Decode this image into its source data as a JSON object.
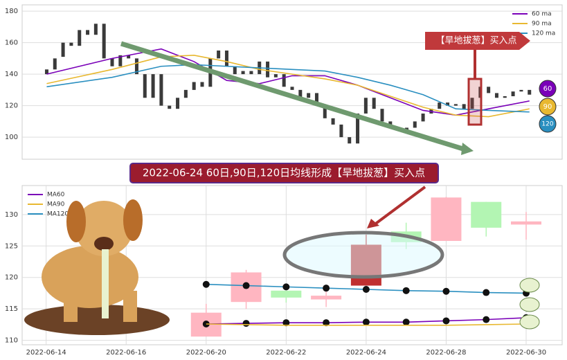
{
  "chart_data": [
    {
      "type": "candlestick",
      "x": [
        0,
        1,
        2,
        3,
        4,
        5,
        6,
        7,
        8,
        9,
        10,
        11,
        12,
        13,
        14,
        15,
        16,
        17,
        18,
        19,
        20,
        21,
        22,
        23,
        24,
        25,
        26,
        27,
        28,
        29,
        30,
        31,
        32,
        33,
        34,
        35,
        36,
        37,
        38,
        39,
        40,
        41,
        42,
        43,
        44,
        45,
        46,
        47,
        48,
        49,
        50,
        51,
        52,
        53,
        54,
        55,
        56,
        57,
        58,
        59
      ],
      "open": [
        140,
        143,
        151,
        160,
        158,
        168,
        165,
        172,
        150,
        145,
        152,
        150,
        140,
        125,
        140,
        120,
        118,
        125,
        130,
        135,
        132,
        150,
        155,
        145,
        140,
        142,
        140,
        148,
        138,
        140,
        132,
        130,
        125,
        128,
        120,
        112,
        108,
        100,
        96,
        115,
        125,
        118,
        110,
        106,
        104,
        106,
        110,
        115,
        118,
        122,
        120,
        121,
        118,
        125,
        132,
        128,
        125,
        126,
        129,
        130
      ],
      "close": [
        143,
        150,
        160,
        158,
        168,
        165,
        172,
        150,
        145,
        152,
        150,
        140,
        125,
        140,
        120,
        118,
        125,
        130,
        135,
        132,
        150,
        155,
        145,
        140,
        142,
        140,
        148,
        138,
        140,
        132,
        130,
        125,
        128,
        120,
        112,
        108,
        100,
        96,
        115,
        125,
        118,
        110,
        106,
        104,
        106,
        110,
        115,
        118,
        122,
        120,
        121,
        118,
        125,
        132,
        128,
        125,
        126,
        129,
        130,
        127
      ],
      "candle_color": "#3a3a3a",
      "series": [
        {
          "name": "60 ma",
          "color": "#7a00b8",
          "x": [
            0,
            8,
            14,
            18,
            22,
            26,
            30,
            34,
            38,
            42,
            46,
            50,
            54,
            59
          ],
          "values": [
            140,
            150,
            156,
            148,
            136,
            134,
            139,
            139,
            133,
            125,
            117,
            114,
            118,
            123
          ]
        },
        {
          "name": "90 ma",
          "color": "#e8b830",
          "x": [
            0,
            8,
            14,
            18,
            22,
            26,
            30,
            34,
            38,
            42,
            46,
            50,
            54,
            59
          ],
          "values": [
            134,
            143,
            151,
            152,
            148,
            143,
            140,
            137,
            133,
            126,
            119,
            114,
            113,
            118
          ]
        },
        {
          "name": "120 ma",
          "color": "#2a8fc0",
          "x": [
            0,
            8,
            14,
            18,
            22,
            26,
            30,
            34,
            38,
            42,
            46,
            50,
            54,
            59
          ],
          "values": [
            132,
            138,
            145,
            146,
            145,
            144,
            143,
            142,
            138,
            133,
            127,
            118,
            117,
            116
          ]
        }
      ],
      "xlim": [
        -3,
        63
      ],
      "ylim": [
        86,
        184
      ],
      "yticks": [
        100,
        120,
        140,
        160,
        180
      ],
      "grid": true,
      "legend": "upper-right",
      "annotation": "【旱地拔葱】买入点",
      "badges": [
        "60",
        "90",
        "120"
      ]
    },
    {
      "type": "candlestick",
      "x": [
        0,
        1,
        2,
        3,
        4,
        5,
        6,
        7,
        8
      ],
      "open": [
        110.6,
        116.1,
        117.9,
        116.5,
        118.7,
        127.3,
        125.8,
        132.0,
        128.4
      ],
      "close": [
        114.4,
        120.8,
        116.8,
        117.1,
        125.2,
        125.6,
        132.7,
        127.9,
        128.9
      ],
      "high": [
        115.8,
        121.2,
        117.9,
        117.8,
        126.8,
        128.7,
        132.8,
        132.0,
        130.4
      ],
      "low": [
        110.6,
        115.0,
        116.0,
        115.3,
        118.7,
        124.5,
        125.8,
        126.5,
        126.0
      ],
      "colors": [
        "#ffb6c1",
        "#ffb6c1",
        "#b3f5b3",
        "#ffb6c1",
        "#c03030",
        "#b3f5b3",
        "#ffb6c1",
        "#b3f5b3",
        "#ffb6c1"
      ],
      "series": [
        {
          "name": "MA60",
          "color": "#7a00b8",
          "x": [
            0,
            1,
            2,
            3,
            4,
            5,
            6,
            7,
            8
          ],
          "values": [
            112.6,
            112.7,
            112.8,
            112.8,
            112.9,
            112.9,
            113.1,
            113.3,
            113.6
          ]
        },
        {
          "name": "MA90",
          "color": "#e8b830",
          "x": [
            0,
            1,
            2,
            3,
            4,
            5,
            6,
            7,
            8
          ],
          "values": [
            112.6,
            112.5,
            112.4,
            112.4,
            112.4,
            112.4,
            112.4,
            112.5,
            112.6
          ]
        },
        {
          "name": "MA120",
          "color": "#2a8fc0",
          "x": [
            0,
            1,
            2,
            3,
            4,
            5,
            6,
            7,
            8
          ],
          "values": [
            118.9,
            118.7,
            118.5,
            118.3,
            118.1,
            117.9,
            117.8,
            117.6,
            117.5
          ]
        }
      ],
      "xlim": [
        -4.6,
        8.9
      ],
      "ylim": [
        109.3,
        134.6
      ],
      "xticks": [
        {
          "value": -4,
          "label": "2022-06-14"
        },
        {
          "value": -2,
          "label": "2022-06-16"
        },
        {
          "value": 0,
          "label": "2022-06-20"
        },
        {
          "value": 2,
          "label": "2022-06-22"
        },
        {
          "value": 4,
          "label": "2022-06-24"
        },
        {
          "value": 6,
          "label": "2022-06-28"
        },
        {
          "value": 8,
          "label": "2022-06-30"
        }
      ],
      "yticks": [
        110,
        115,
        120,
        125,
        130
      ],
      "grid": true,
      "legend": "upper-left",
      "title": "2022-06-24 60日,90日,120日均线形成【旱地拔葱】买入点"
    }
  ]
}
